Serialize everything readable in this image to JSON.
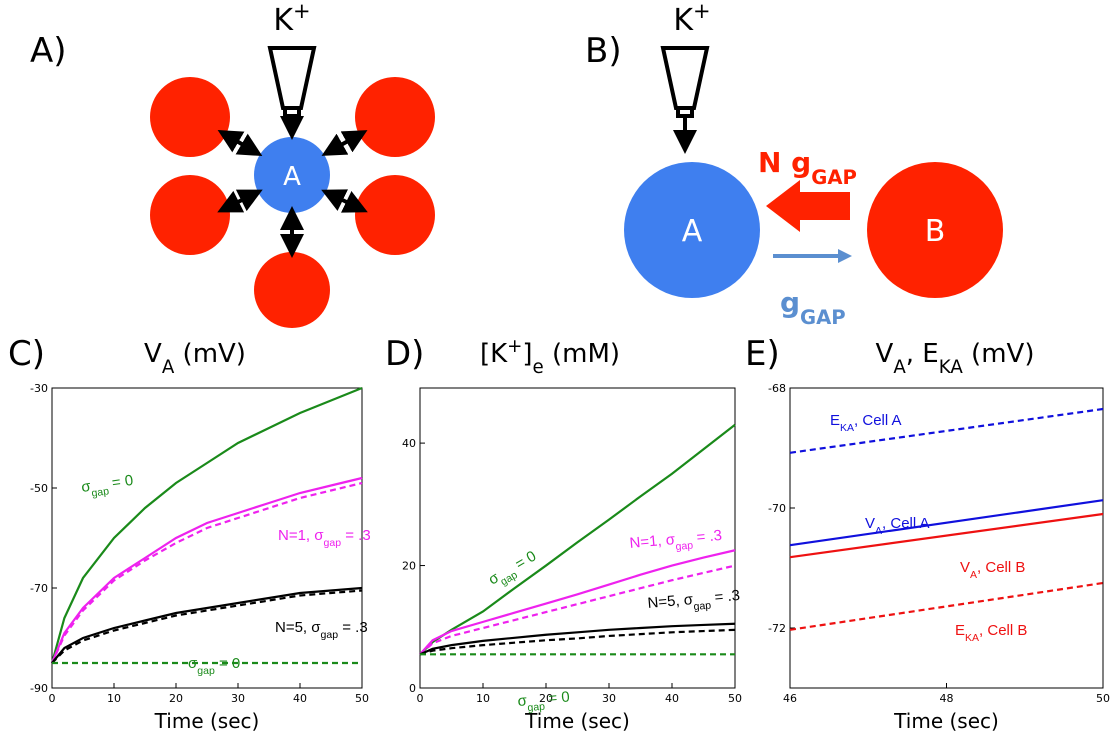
{
  "panel_labels": [
    "A)",
    "B)",
    "C)",
    "D)",
    "E)"
  ],
  "diagram_a": {
    "stimulus": [
      "K",
      {
        "sup": "+"
      }
    ],
    "center": "A"
  },
  "diagram_b": {
    "stimulus": [
      "K",
      {
        "sup": "+"
      }
    ],
    "cell_a": "A",
    "cell_b": "B",
    "coupling_in": [
      "N g",
      {
        "sub": "GAP"
      }
    ],
    "coupling_out": [
      "g",
      {
        "sub": "GAP"
      }
    ]
  },
  "chart_data": [
    {
      "type": "line",
      "title": [
        "V",
        {
          "sub": "A"
        },
        " (mV)"
      ],
      "xlabel": "Time (sec)",
      "x": [
        0,
        2,
        5,
        10,
        15,
        20,
        25,
        30,
        35,
        40,
        45,
        50
      ],
      "xlim": [
        0,
        50
      ],
      "xticks": [
        0,
        10,
        20,
        30,
        40,
        50
      ],
      "ylim": [
        -90,
        -30
      ],
      "yticks": [
        -90,
        -70,
        -50,
        -30
      ],
      "series": [
        {
          "color": "#1a8a1a",
          "dashed": false,
          "values": [
            -85,
            -76,
            -68,
            -60,
            -54,
            -49,
            -45,
            -41,
            -38,
            -35,
            -32.5,
            -30
          ]
        },
        {
          "color": "#ee22ee",
          "dashed": false,
          "values": [
            -85,
            -79,
            -74,
            -68,
            -64,
            -60,
            -57,
            -55,
            -53,
            -51,
            -49.5,
            -48
          ]
        },
        {
          "color": "#ee22ee",
          "dashed": true,
          "values": [
            -85,
            -79.5,
            -74.5,
            -68.5,
            -64.5,
            -61,
            -58,
            -56,
            -54,
            -52,
            -50.5,
            -49
          ]
        },
        {
          "color": "#000000",
          "dashed": false,
          "values": [
            -85,
            -82,
            -80,
            -78,
            -76.5,
            -75,
            -74,
            -73,
            -72,
            -71,
            -70.5,
            -70
          ]
        },
        {
          "color": "#000000",
          "dashed": true,
          "values": [
            -85,
            -82.5,
            -80.5,
            -78.5,
            -77,
            -75.5,
            -74.5,
            -73.5,
            -72.5,
            -71.5,
            -71,
            -70.5
          ]
        },
        {
          "color": "#1a8a1a",
          "dashed": true,
          "values": [
            -85,
            -85,
            -85,
            -85,
            -85,
            -85,
            -85,
            -85,
            -85,
            -85,
            -85,
            -85
          ]
        }
      ],
      "annotations": [
        {
          "text": [
            "σ",
            {
              "sub": "gap"
            },
            " = 0"
          ],
          "color": "#1a8a1a"
        },
        {
          "text": [
            "N=1, σ",
            {
              "sub": "gap"
            },
            " = .3"
          ],
          "color": "#ee22ee"
        },
        {
          "text": [
            "N=5, σ",
            {
              "sub": "gap"
            },
            " = .3"
          ],
          "color": "#000000"
        },
        {
          "text": [
            "σ",
            {
              "sub": "gap"
            },
            " = 0"
          ],
          "color": "#1a8a1a"
        }
      ]
    },
    {
      "type": "line",
      "title": [
        "[K",
        {
          "sup": "+"
        },
        "]",
        {
          "sub": "e"
        },
        " (mM)"
      ],
      "xlabel": "Time (sec)",
      "x": [
        0,
        2,
        5,
        10,
        15,
        20,
        25,
        30,
        35,
        40,
        45,
        50
      ],
      "xlim": [
        0,
        50
      ],
      "xticks": [
        0,
        10,
        20,
        30,
        40,
        50
      ],
      "ylim": [
        0,
        49
      ],
      "yticks": [
        0,
        20,
        40
      ],
      "series": [
        {
          "color": "#1a8a1a",
          "dashed": false,
          "values": [
            5.5,
            7.5,
            9.5,
            12.5,
            16.3,
            20,
            23.8,
            27.5,
            31.3,
            35,
            39,
            43
          ]
        },
        {
          "color": "#ee22ee",
          "dashed": false,
          "values": [
            5.5,
            7.8,
            9.3,
            10.8,
            12.3,
            13.8,
            15.3,
            16.9,
            18.5,
            20,
            21.3,
            22.5
          ]
        },
        {
          "color": "#ee22ee",
          "dashed": true,
          "values": [
            5.5,
            7.3,
            8.5,
            9.8,
            11.1,
            12.4,
            13.7,
            15,
            16.3,
            17.6,
            18.8,
            20
          ]
        },
        {
          "color": "#000000",
          "dashed": false,
          "values": [
            5.5,
            6.4,
            7,
            7.7,
            8.2,
            8.7,
            9.1,
            9.5,
            9.8,
            10.1,
            10.3,
            10.5
          ]
        },
        {
          "color": "#000000",
          "dashed": true,
          "values": [
            5.5,
            6.1,
            6.5,
            7,
            7.4,
            7.8,
            8.1,
            8.5,
            8.8,
            9.1,
            9.3,
            9.5
          ]
        },
        {
          "color": "#1a8a1a",
          "dashed": true,
          "values": [
            5.5,
            5.5,
            5.5,
            5.5,
            5.5,
            5.5,
            5.5,
            5.5,
            5.5,
            5.5,
            5.5,
            5.5
          ]
        }
      ],
      "annotations": [
        {
          "text": [
            "σ",
            {
              "sub": "gap"
            },
            " = 0"
          ],
          "color": "#1a8a1a"
        },
        {
          "text": [
            "N=1, σ",
            {
              "sub": "gap"
            },
            " = .3"
          ],
          "color": "#ee22ee"
        },
        {
          "text": [
            "N=5, σ",
            {
              "sub": "gap"
            },
            " = .3"
          ],
          "color": "#000000"
        },
        {
          "text": [
            "σ",
            {
              "sub": "gap"
            },
            " = 0"
          ],
          "color": "#1a8a1a"
        }
      ]
    },
    {
      "type": "line",
      "title": [
        "V",
        {
          "sub": "A"
        },
        ", E",
        {
          "sub": "KA"
        },
        " (mV)"
      ],
      "xlabel": "Time (sec)",
      "x": [
        46,
        50
      ],
      "xlim": [
        46,
        50
      ],
      "xticks": [
        46,
        48,
        50
      ],
      "ylim": [
        -73,
        -68
      ],
      "yticks": [
        -72,
        -70,
        -68
      ],
      "series": [
        {
          "color": "#1010dd",
          "dashed": true,
          "values": [
            -69.08,
            -68.35
          ]
        },
        {
          "color": "#1010dd",
          "dashed": false,
          "values": [
            -70.62,
            -69.87
          ]
        },
        {
          "color": "#ee1111",
          "dashed": false,
          "values": [
            -70.82,
            -70.1
          ]
        },
        {
          "color": "#ee1111",
          "dashed": true,
          "values": [
            -72.03,
            -71.25
          ]
        }
      ],
      "annotations": [
        {
          "text": [
            "E",
            {
              "sub": "KA"
            },
            ", Cell A"
          ],
          "color": "#1010dd"
        },
        {
          "text": [
            "V",
            {
              "sub": "A"
            },
            ", Cell A"
          ],
          "color": "#1010dd"
        },
        {
          "text": [
            "V",
            {
              "sub": "A"
            },
            ", Cell B"
          ],
          "color": "#ee1111"
        },
        {
          "text": [
            "E",
            {
              "sub": "KA"
            },
            ", Cell B"
          ],
          "color": "#ee1111"
        }
      ]
    }
  ]
}
